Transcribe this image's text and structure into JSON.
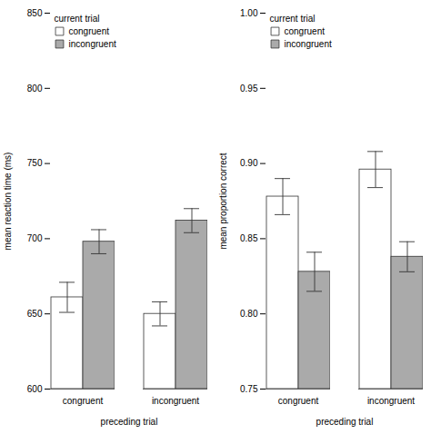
{
  "chart_data": [
    {
      "type": "bar",
      "xlabel": "preceding trial",
      "ylabel": "mean reaction time (ms)",
      "categories": [
        "congruent",
        "incongruent"
      ],
      "series": [
        {
          "name": "congruent",
          "color": "#ffffff",
          "values": [
            661,
            650
          ],
          "errors": [
            10,
            8
          ]
        },
        {
          "name": "incongruent",
          "color": "#aaaaaa",
          "values": [
            698,
            712
          ],
          "errors": [
            8,
            8
          ]
        }
      ],
      "ylim": [
        600,
        850
      ],
      "yticks": [
        600,
        650,
        700,
        750,
        800,
        850
      ],
      "grid": false,
      "legend": "upper left",
      "legend_title": "current trial"
    },
    {
      "type": "bar",
      "xlabel": "preceding trial",
      "ylabel": "mean proportion correct",
      "categories": [
        "congruent",
        "incongruent"
      ],
      "series": [
        {
          "name": "congruent",
          "color": "#ffffff",
          "values": [
            0.878,
            0.896
          ],
          "errors": [
            0.012,
            0.012
          ]
        },
        {
          "name": "incongruent",
          "color": "#aaaaaa",
          "values": [
            0.828,
            0.838
          ],
          "errors": [
            0.013,
            0.01
          ]
        }
      ],
      "ylim": [
        0.75,
        1.0
      ],
      "yticks": [
        0.75,
        {
          "value": 0.8,
          "label": "0.80"
        },
        0.85,
        {
          "value": 0.9,
          "label": "0.90"
        },
        0.95,
        {
          "value": 1.0,
          "label": "1.00"
        }
      ],
      "grid": false,
      "legend": "upper left",
      "legend_title": "current trial"
    }
  ]
}
